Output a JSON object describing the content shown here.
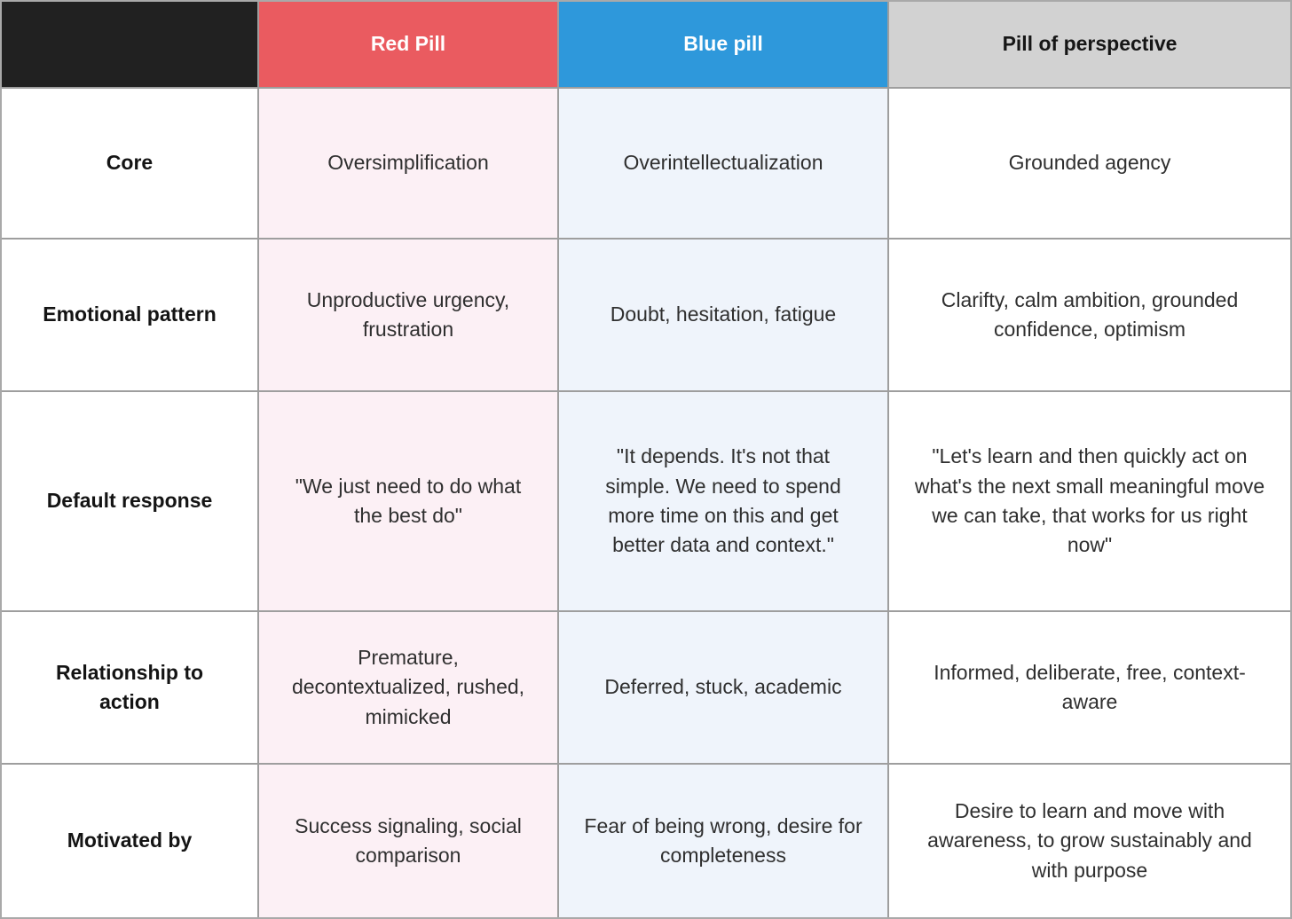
{
  "chart_data": {
    "type": "table",
    "columns": [
      "",
      "Red Pill",
      "Blue pill",
      "Pill of perspective"
    ],
    "rows": [
      {
        "label": "Core",
        "cells": [
          "Oversimplification",
          "Overintellectualization",
          "Grounded agency"
        ]
      },
      {
        "label": "Emotional pattern",
        "cells": [
          "Unproductive urgency, frustration",
          "Doubt, hesitation, fatigue",
          "Clarifty, calm ambition, grounded confidence, optimism"
        ]
      },
      {
        "label": "Default response",
        "cells": [
          "\"We just need to do what the best do\"",
          "\"It depends. It's not that simple. We need to spend more time on this and get better data and context.\"",
          "\"Let's learn and then quickly act on what's the next small meaningful move we can take, that works for us right now\""
        ]
      },
      {
        "label": "Relationship to action",
        "cells": [
          "Premature, decontextualized, rushed, mimicked",
          "Deferred, stuck, academic",
          "Informed, deliberate, free, context-aware"
        ]
      },
      {
        "label": "Motivated by",
        "cells": [
          "Success signaling, social comparison",
          "Fear of being wrong, desire for completeness",
          "Desire to learn and move with awareness, to grow sustainably and with purpose"
        ]
      }
    ],
    "layout": {
      "header_row": true,
      "row_label_column": true
    }
  },
  "colors": {
    "corner_header_bg": "#212121",
    "red_pill_header_bg": "#EA5B60",
    "blue_pill_header_bg": "#2E98DB",
    "perspective_header_bg": "#D2D2D2",
    "red_pill_cell_bg": "#FCF0F5",
    "blue_pill_cell_bg": "#EFF4FB",
    "perspective_cell_bg": "#FFFFFF",
    "grid_line": "#9E9E9E",
    "header_text_light": "#FFFFFF",
    "header_text_dark": "#161616",
    "body_text": "#2F2F2F"
  }
}
